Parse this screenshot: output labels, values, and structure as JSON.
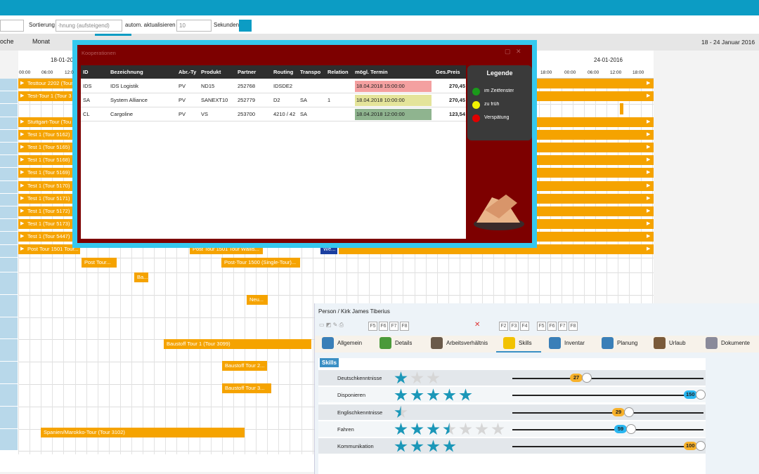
{
  "toolbar": {
    "sort_label": "Sortierung",
    "sort_value": "·hnung (aufsteigend)",
    "refresh_label": "autom. aktualisieren",
    "refresh_value": "10",
    "seconds_label": "Sekunden"
  },
  "view_tabs": [
    "oche",
    "Monat"
  ],
  "date_range": "18  - 24 Januar 2016",
  "days": [
    "18-01-20",
    "24-01-2016"
  ],
  "hours_left": [
    "00:00",
    "06:00",
    "12:0"
  ],
  "hours_right": [
    "18:00",
    "00:00",
    "06:00",
    "12:00",
    "18:00"
  ],
  "tours": [
    "Testtour 2202 (Tour",
    "Test-Tour 1 (Tour 3",
    "Stuttgart-Tour (Tou",
    "Test 1 (Tour 5162)",
    "Test 1 (Tour 5165)",
    "Test 1 (Tour 5168)",
    "Test 1 (Tour 5169)",
    "Test 1 (Tour 5170)",
    "Test 1 (Tour 5171)",
    "Test 1 (Tour 5172)",
    "Test 1 (Tour 5173)",
    "Test 1 (Tour 5447)",
    "Post Tour 1501 Tour...",
    "Post Tour...",
    "Post Tour 1501 Tour Wallis...",
    "Post-Tour 1500 (Single-Tour)...",
    "Ba...",
    "Neu...",
    "We...",
    "Baustoff Tour 1 (Tour 3099)",
    "Baustoff Tour 2...",
    "Baustoff Tour 3...",
    "Spanien/Marokko-Tour (Tour 3102)"
  ],
  "dialog": {
    "title": "Kooperationen",
    "columns": [
      "ID",
      "Bezeichnung",
      "Abr.-Ty",
      "Produkt",
      "Partner",
      "Routing",
      "Transpo",
      "Relation",
      "mögl. Termin",
      "Ges.Preis"
    ],
    "rows": [
      [
        "IDS",
        "IDS Logistik",
        "PV",
        "ND15",
        "252768",
        "IDSDE2",
        "",
        "",
        "18.04.2018 15:00:00",
        "270,45"
      ],
      [
        "SA",
        "System Alliance",
        "PV",
        "SANEXT10",
        "252779",
        "D2",
        "SA",
        "1",
        "18.04.2018 10:00:00",
        "270,45"
      ],
      [
        "CL",
        "Cargoline",
        "PV",
        "VS",
        "253700",
        "4210 / 42",
        "SA",
        "",
        "18.04.2018 12:00:00",
        "123,54"
      ]
    ],
    "legend": {
      "title": "Legende",
      "items": [
        "im Zeitfenster",
        "zu früh",
        "Verspätung"
      ]
    }
  },
  "person": {
    "title": "Person / Kirk James Tiberius",
    "fkeys_a": [
      "F5",
      "F6",
      "F7",
      "F8"
    ],
    "fkeys_b": [
      "F2",
      "F3",
      "F4"
    ],
    "fkeys_c": [
      "F5",
      "F6",
      "F7",
      "F8"
    ],
    "tabs": [
      "Allgemein",
      "Details",
      "Arbeitsverhältnis",
      "Skills",
      "Inventar",
      "Planung",
      "Urlaub",
      "Dokumente"
    ],
    "skills_header": "Skills",
    "skills": [
      {
        "name": "Deutschkenntnisse",
        "value": 27
      },
      {
        "name": "Disponieren",
        "value": 150
      },
      {
        "name": "Englischkenntnisse",
        "value": 29
      },
      {
        "name": "Fahren",
        "value": 59
      },
      {
        "name": "Kommunikation",
        "value": 100
      }
    ]
  }
}
